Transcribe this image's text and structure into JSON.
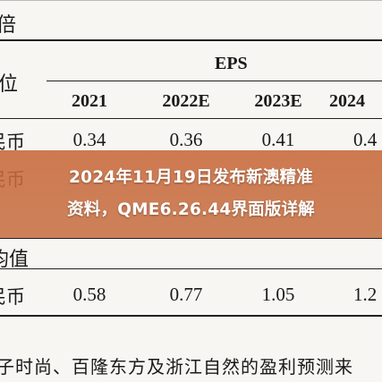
{
  "header": {
    "top_label": "倍",
    "unit_label": "位",
    "group_label": "EPS"
  },
  "columns": [
    "2021",
    "2022E",
    "2023E",
    "2024"
  ],
  "rows": [
    {
      "label": "民币",
      "values": [
        "0.34",
        "0.36",
        "0.41",
        "0.4"
      ]
    },
    {
      "label": "民币",
      "values": [
        "",
        "",
        "",
        ""
      ]
    }
  ],
  "section2": {
    "label": "均值"
  },
  "avg_row": {
    "label": "民币",
    "values": [
      "0.58",
      "0.77",
      "1.05",
      "1.2"
    ]
  },
  "overlay": {
    "line1": "2024年11月19日发布新澳精准",
    "line2": "资料，QME6.26.44界面版详解"
  },
  "footer_text": "子时尚、百隆东方及浙江自然的盈利预测来",
  "colors": {
    "overlay": "#c8683a",
    "text": "#1a1a1a",
    "background": "#f7f6f2"
  }
}
